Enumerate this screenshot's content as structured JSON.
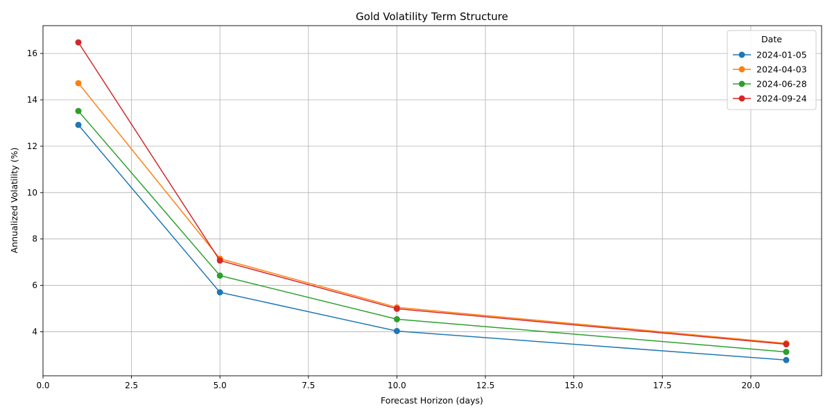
{
  "chart_data": {
    "type": "line",
    "title": "Gold Volatility Term Structure",
    "xlabel": "Forecast Horizon (days)",
    "ylabel": "Annualized Volatility (%)",
    "xlim": [
      0,
      22
    ],
    "ylim": [
      2.1,
      17.2
    ],
    "xticks": [
      0,
      2.5,
      5,
      7.5,
      10,
      12.5,
      15,
      17.5,
      20
    ],
    "xtick_labels": [
      "0.0",
      "2.5",
      "5.0",
      "7.5",
      "10.0",
      "12.5",
      "15.0",
      "17.5",
      "20.0"
    ],
    "yticks": [
      4,
      6,
      8,
      10,
      12,
      14,
      16
    ],
    "ytick_labels": [
      "4",
      "6",
      "8",
      "10",
      "12",
      "14",
      "16"
    ],
    "grid": true,
    "legend": {
      "title": "Date",
      "placement": "top-right"
    },
    "x": [
      1,
      5,
      10,
      21
    ],
    "series": [
      {
        "name": "2024-01-05",
        "color": "#1f77b4",
        "values": [
          12.92,
          5.7,
          4.03,
          2.78
        ]
      },
      {
        "name": "2024-04-03",
        "color": "#ff7f0e",
        "values": [
          14.72,
          7.15,
          5.05,
          3.5
        ]
      },
      {
        "name": "2024-06-28",
        "color": "#2ca02c",
        "values": [
          13.52,
          6.42,
          4.54,
          3.13
        ]
      },
      {
        "name": "2024-09-24",
        "color": "#d62728",
        "values": [
          16.48,
          7.07,
          4.99,
          3.46
        ]
      }
    ]
  }
}
